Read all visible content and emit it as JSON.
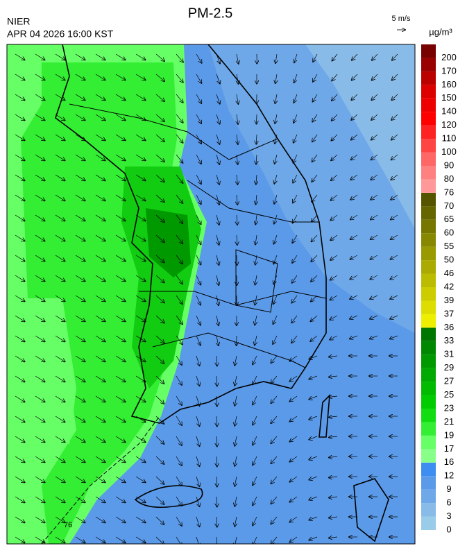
{
  "header": {
    "title": "PM-2.5",
    "agency": "NIER",
    "datetime": "APR 04 2026 16:00 KST",
    "wind_scale": "5 m/s"
  },
  "map": {
    "contour_label": "76"
  },
  "colorbar": {
    "unit": "µg/m³",
    "levels": [
      0,
      3,
      6,
      9,
      12,
      16,
      17,
      19,
      21,
      23,
      25,
      27,
      29,
      31,
      33,
      36,
      37,
      39,
      42,
      46,
      50,
      55,
      60,
      65,
      70,
      76,
      80,
      90,
      100,
      110,
      120,
      140,
      150,
      160,
      170,
      200
    ],
    "colors": [
      "#99cce8",
      "#88bbe8",
      "#6fa8e8",
      "#5b9ae8",
      "#3d8ef0",
      "#88ff88",
      "#66ff66",
      "#33ee33",
      "#11dd11",
      "#00cc00",
      "#00bb00",
      "#00aa00",
      "#009900",
      "#008800",
      "#007700",
      "#eeee00",
      "#dddd00",
      "#cccc00",
      "#bbbb00",
      "#aaaa00",
      "#999900",
      "#888800",
      "#777700",
      "#666600",
      "#555500",
      "#ff9999",
      "#ff8080",
      "#ff6666",
      "#ff4444",
      "#ff2222",
      "#ff0000",
      "#ee0000",
      "#dd0000",
      "#bb0000",
      "#990000",
      "#770000"
    ]
  }
}
